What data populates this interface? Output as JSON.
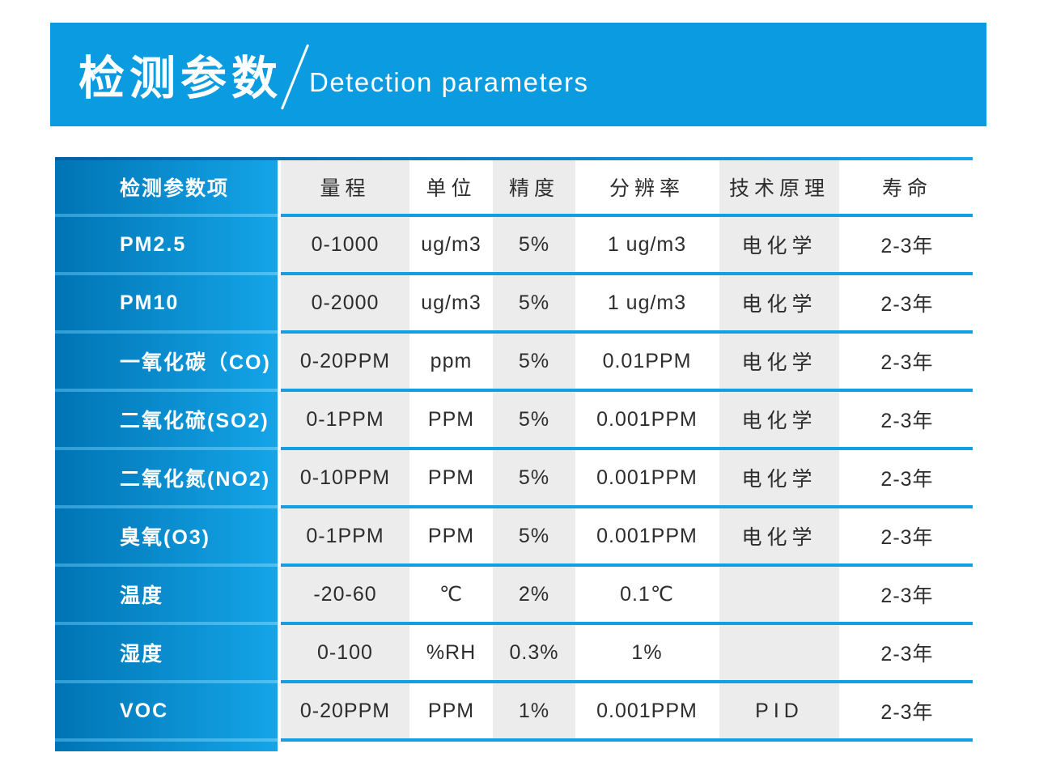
{
  "banner": {
    "title_cn": "检测参数",
    "title_en": "Detection parameters"
  },
  "table": {
    "header": {
      "param": "检测参数项",
      "cols": [
        "量程",
        "单位",
        "精度",
        "分辨率",
        "技术原理",
        "寿命"
      ]
    },
    "rows": [
      {
        "param": "PM2.5",
        "range": "0-1000",
        "unit": "ug/m3",
        "accuracy": "5%",
        "resolution": "1 ug/m3",
        "principle": "电化学",
        "lifespan": "2-3年"
      },
      {
        "param": "PM10",
        "range": "0-2000",
        "unit": "ug/m3",
        "accuracy": "5%",
        "resolution": "1 ug/m3",
        "principle": "电化学",
        "lifespan": "2-3年"
      },
      {
        "param": "一氧化碳（CO)",
        "range": "0-20PPM",
        "unit": "ppm",
        "accuracy": "5%",
        "resolution": "0.01PPM",
        "principle": "电化学",
        "lifespan": "2-3年"
      },
      {
        "param": "二氧化硫(SO2)",
        "range": "0-1PPM",
        "unit": "PPM",
        "accuracy": "5%",
        "resolution": "0.001PPM",
        "principle": "电化学",
        "lifespan": "2-3年"
      },
      {
        "param": "二氧化氮(NO2)",
        "range": "0-10PPM",
        "unit": "PPM",
        "accuracy": "5%",
        "resolution": "0.001PPM",
        "principle": "电化学",
        "lifespan": "2-3年"
      },
      {
        "param": "臭氧(O3)",
        "range": "0-1PPM",
        "unit": "PPM",
        "accuracy": "5%",
        "resolution": "0.001PPM",
        "principle": "电化学",
        "lifespan": "2-3年"
      },
      {
        "param": "温度",
        "range": "-20-60",
        "unit": "℃",
        "accuracy": "2%",
        "resolution": "0.1℃",
        "principle": "",
        "lifespan": "2-3年"
      },
      {
        "param": "湿度",
        "range": "0-100",
        "unit": "%RH",
        "accuracy": "0.3%",
        "resolution": "1%",
        "principle": "",
        "lifespan": "2-3年"
      },
      {
        "param": "VOC",
        "range": "0-20PPM",
        "unit": "PPM",
        "accuracy": "1%",
        "resolution": "0.001PPM",
        "principle": "PID",
        "lifespan": "2-3年"
      }
    ]
  },
  "colors": {
    "banner_blue": "#0a9be1",
    "separator_blue": "#129fe3",
    "column_gradient_start": "#0074b4",
    "column_gradient_end": "#14a5e8",
    "cell_gray": "#ececec",
    "text_dark": "#2d2d2d"
  }
}
